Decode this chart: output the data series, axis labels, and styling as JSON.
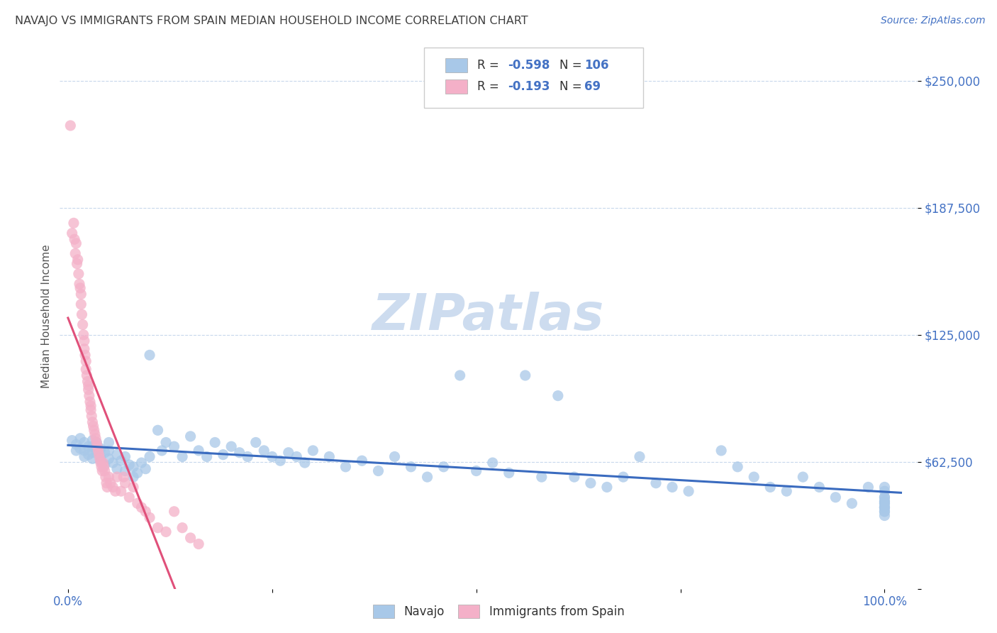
{
  "title": "NAVAJO VS IMMIGRANTS FROM SPAIN MEDIAN HOUSEHOLD INCOME CORRELATION CHART",
  "source": "Source: ZipAtlas.com",
  "ylabel": "Median Household Income",
  "ytick_vals": [
    0,
    62500,
    125000,
    187500,
    250000
  ],
  "ytick_labels": [
    "",
    "$62,500",
    "$125,000",
    "$187,500",
    "$250,000"
  ],
  "xlim": [
    -0.01,
    1.04
  ],
  "ylim": [
    0,
    268000
  ],
  "navajo_R": -0.598,
  "navajo_N": 106,
  "spain_R": -0.193,
  "spain_N": 69,
  "navajo_color": "#a8c8e8",
  "navajo_line_color": "#3a6bbf",
  "spain_color": "#f4b0c8",
  "spain_line_color": "#e0507a",
  "spain_dashed_color": "#d8c0cc",
  "title_color": "#404040",
  "source_color": "#4472c4",
  "axis_color": "#4472c4",
  "legend_color": "#4472c4",
  "watermark_color": "#cddcef",
  "grid_color": "#c8d8ec",
  "navajo_x": [
    0.005,
    0.01,
    0.01,
    0.015,
    0.015,
    0.02,
    0.02,
    0.02,
    0.025,
    0.025,
    0.03,
    0.03,
    0.03,
    0.03,
    0.035,
    0.035,
    0.04,
    0.04,
    0.04,
    0.045,
    0.045,
    0.05,
    0.05,
    0.05,
    0.055,
    0.06,
    0.06,
    0.065,
    0.07,
    0.07,
    0.075,
    0.08,
    0.08,
    0.085,
    0.09,
    0.095,
    0.1,
    0.1,
    0.11,
    0.115,
    0.12,
    0.13,
    0.14,
    0.15,
    0.16,
    0.17,
    0.18,
    0.19,
    0.2,
    0.21,
    0.22,
    0.23,
    0.24,
    0.25,
    0.26,
    0.27,
    0.28,
    0.29,
    0.3,
    0.32,
    0.34,
    0.36,
    0.38,
    0.4,
    0.42,
    0.44,
    0.46,
    0.48,
    0.5,
    0.52,
    0.54,
    0.56,
    0.58,
    0.6,
    0.62,
    0.64,
    0.66,
    0.68,
    0.7,
    0.72,
    0.74,
    0.76,
    0.8,
    0.82,
    0.84,
    0.86,
    0.88,
    0.9,
    0.92,
    0.94,
    0.96,
    0.98,
    1.0,
    1.0,
    1.0,
    1.0,
    1.0,
    1.0,
    1.0,
    1.0,
    1.0,
    1.0,
    1.0,
    1.0,
    1.0,
    1.0
  ],
  "navajo_y": [
    73000,
    71000,
    68000,
    74000,
    69000,
    72000,
    68000,
    65000,
    70000,
    66000,
    73000,
    67000,
    70000,
    64000,
    68000,
    72000,
    65000,
    69000,
    63000,
    67000,
    61000,
    64000,
    68000,
    72000,
    62000,
    66000,
    59000,
    63000,
    65000,
    58000,
    61000,
    55000,
    60000,
    57000,
    62000,
    59000,
    115000,
    65000,
    78000,
    68000,
    72000,
    70000,
    65000,
    75000,
    68000,
    65000,
    72000,
    66000,
    70000,
    67000,
    65000,
    72000,
    68000,
    65000,
    63000,
    67000,
    65000,
    62000,
    68000,
    65000,
    60000,
    63000,
    58000,
    65000,
    60000,
    55000,
    60000,
    105000,
    58000,
    62000,
    57000,
    105000,
    55000,
    95000,
    55000,
    52000,
    50000,
    55000,
    65000,
    52000,
    50000,
    48000,
    68000,
    60000,
    55000,
    50000,
    48000,
    55000,
    50000,
    45000,
    42000,
    50000,
    48000,
    45000,
    43000,
    40000,
    50000,
    42000,
    38000,
    45000,
    43000,
    40000,
    42000,
    38000,
    36000,
    40000
  ],
  "spain_x": [
    0.003,
    0.005,
    0.007,
    0.008,
    0.009,
    0.01,
    0.011,
    0.012,
    0.013,
    0.014,
    0.015,
    0.016,
    0.016,
    0.017,
    0.018,
    0.019,
    0.02,
    0.02,
    0.021,
    0.022,
    0.022,
    0.023,
    0.024,
    0.025,
    0.025,
    0.026,
    0.027,
    0.028,
    0.028,
    0.029,
    0.03,
    0.031,
    0.032,
    0.033,
    0.034,
    0.035,
    0.036,
    0.037,
    0.038,
    0.039,
    0.04,
    0.041,
    0.042,
    0.043,
    0.044,
    0.045,
    0.046,
    0.047,
    0.048,
    0.05,
    0.052,
    0.055,
    0.058,
    0.06,
    0.065,
    0.068,
    0.07,
    0.075,
    0.08,
    0.085,
    0.09,
    0.095,
    0.1,
    0.11,
    0.12,
    0.13,
    0.14,
    0.15,
    0.16
  ],
  "spain_y": [
    228000,
    175000,
    180000,
    172000,
    165000,
    170000,
    160000,
    162000,
    155000,
    150000,
    148000,
    140000,
    145000,
    135000,
    130000,
    125000,
    122000,
    118000,
    115000,
    112000,
    108000,
    105000,
    102000,
    100000,
    98000,
    95000,
    92000,
    90000,
    88000,
    85000,
    82000,
    80000,
    78000,
    76000,
    74000,
    72000,
    70000,
    68000,
    66000,
    64000,
    62000,
    60000,
    58000,
    62000,
    60000,
    58000,
    55000,
    52000,
    50000,
    55000,
    52000,
    50000,
    48000,
    55000,
    48000,
    55000,
    52000,
    45000,
    50000,
    42000,
    40000,
    38000,
    35000,
    30000,
    28000,
    38000,
    30000,
    25000,
    22000
  ]
}
